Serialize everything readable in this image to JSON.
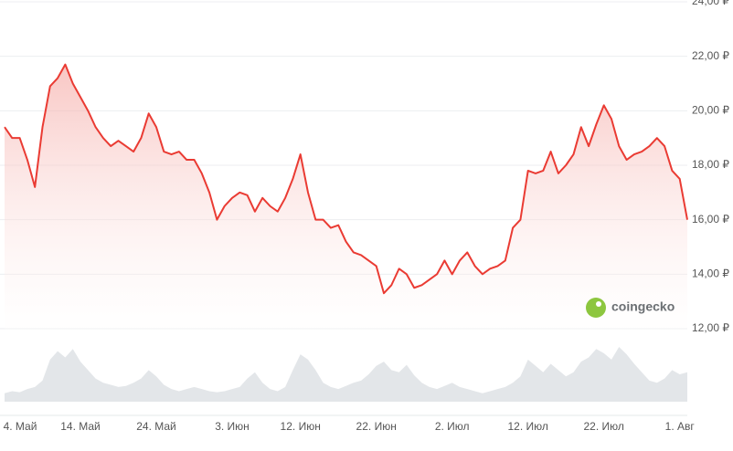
{
  "chart_data": {
    "type": "line",
    "categories": [
      "4. Май",
      null,
      null,
      null,
      null,
      null,
      null,
      null,
      null,
      null,
      "14. Май",
      null,
      null,
      null,
      null,
      null,
      null,
      null,
      null,
      null,
      "24. Май",
      null,
      null,
      null,
      null,
      null,
      null,
      null,
      null,
      null,
      "3. Июн",
      null,
      null,
      null,
      null,
      null,
      null,
      null,
      null,
      "12. Июн",
      null,
      null,
      null,
      null,
      null,
      null,
      null,
      null,
      null,
      "22. Июн",
      null,
      null,
      null,
      null,
      null,
      null,
      null,
      null,
      null,
      "2. Июл",
      null,
      null,
      null,
      null,
      null,
      null,
      null,
      null,
      null,
      "12. Июл",
      null,
      null,
      null,
      null,
      null,
      null,
      null,
      null,
      null,
      "22. Июл",
      null,
      null,
      null,
      null,
      null,
      null,
      null,
      null,
      null,
      "1. Авг",
      null
    ],
    "values": [
      19.4,
      19.0,
      19.0,
      18.2,
      17.2,
      19.4,
      20.9,
      21.2,
      21.7,
      21.0,
      20.5,
      20.0,
      19.4,
      19.0,
      18.7,
      18.9,
      18.7,
      18.5,
      19.0,
      19.9,
      19.4,
      18.5,
      18.4,
      18.5,
      18.2,
      18.2,
      17.7,
      17.0,
      16.0,
      16.5,
      16.8,
      17.0,
      16.9,
      16.3,
      16.8,
      16.5,
      16.3,
      16.8,
      17.5,
      18.4,
      17.0,
      16.0,
      16.0,
      15.7,
      15.8,
      15.2,
      14.8,
      14.7,
      14.5,
      14.3,
      13.3,
      13.6,
      14.2,
      14.0,
      13.5,
      13.6,
      13.8,
      14.0,
      14.5,
      14.0,
      14.5,
      14.8,
      14.3,
      14.0,
      14.2,
      14.3,
      14.5,
      15.7,
      16.0,
      17.8,
      17.7,
      17.8,
      18.5,
      17.7,
      18.0,
      18.4,
      19.4,
      18.7,
      19.5,
      20.2,
      19.7,
      18.7,
      18.2,
      18.4,
      18.5,
      18.7,
      19.0,
      18.7,
      17.8,
      17.5,
      16.0
    ],
    "color": "#ea3b33",
    "volume": [
      8,
      10,
      9,
      12,
      14,
      20,
      40,
      48,
      42,
      50,
      38,
      30,
      22,
      18,
      16,
      14,
      15,
      18,
      22,
      30,
      24,
      16,
      12,
      10,
      12,
      14,
      12,
      10,
      9,
      10,
      12,
      14,
      22,
      28,
      18,
      12,
      10,
      14,
      30,
      45,
      40,
      30,
      18,
      14,
      12,
      15,
      18,
      20,
      26,
      34,
      38,
      30,
      28,
      35,
      25,
      18,
      14,
      12,
      15,
      18,
      14,
      12,
      10,
      8,
      10,
      12,
      14,
      18,
      24,
      40,
      34,
      28,
      36,
      30,
      24,
      28,
      38,
      42,
      50,
      46,
      40,
      52,
      45,
      36,
      28,
      20,
      18,
      22,
      30,
      26,
      28
    ],
    "volume_color": "#e3e6e9",
    "ylim": [
      12,
      24
    ],
    "yticks": [
      {
        "value": 12,
        "label": "12,00 ₽"
      },
      {
        "value": 14,
        "label": "14,00 ₽"
      },
      {
        "value": 16,
        "label": "16,00 ₽"
      },
      {
        "value": 18,
        "label": "18,00 ₽"
      },
      {
        "value": 20,
        "label": "20,00 ₽"
      },
      {
        "value": 22,
        "label": "22,00 ₽"
      },
      {
        "value": 24,
        "label": "24,00 ₽"
      }
    ],
    "grid": true,
    "brand": "coingecko"
  }
}
